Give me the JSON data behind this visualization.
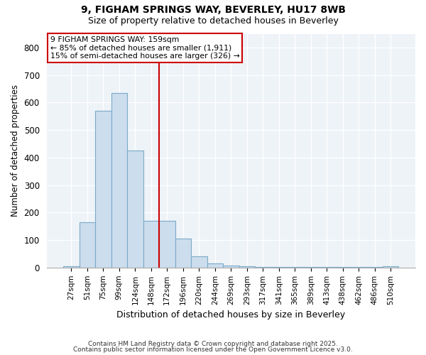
{
  "title1": "9, FIGHAM SPRINGS WAY, BEVERLEY, HU17 8WB",
  "title2": "Size of property relative to detached houses in Beverley",
  "xlabel": "Distribution of detached houses by size in Beverley",
  "ylabel": "Number of detached properties",
  "bin_labels": [
    "27sqm",
    "51sqm",
    "75sqm",
    "99sqm",
    "124sqm",
    "148sqm",
    "172sqm",
    "196sqm",
    "220sqm",
    "244sqm",
    "269sqm",
    "293sqm",
    "317sqm",
    "341sqm",
    "365sqm",
    "389sqm",
    "413sqm",
    "438sqm",
    "462sqm",
    "486sqm",
    "510sqm"
  ],
  "bar_heights": [
    5,
    165,
    570,
    635,
    425,
    170,
    170,
    105,
    40,
    15,
    8,
    5,
    3,
    2,
    2,
    2,
    2,
    2,
    2,
    2,
    5
  ],
  "bar_color": "#ccdded",
  "bar_edge_color": "#7aaac8",
  "vline_color": "#cc0000",
  "annotation_text": "9 FIGHAM SPRINGS WAY: 159sqm\n← 85% of detached houses are smaller (1,911)\n15% of semi-detached houses are larger (326) →",
  "annotation_box_color": "#cc0000",
  "ylim": [
    0,
    850
  ],
  "yticks": [
    0,
    100,
    200,
    300,
    400,
    500,
    600,
    700,
    800
  ],
  "footer1": "Contains HM Land Registry data © Crown copyright and database right 2025.",
  "footer2": "Contains public sector information licensed under the Open Government Licence v3.0.",
  "bg_color": "#ffffff",
  "plot_bg_color": "#eef3f8",
  "grid_color": "#ffffff"
}
